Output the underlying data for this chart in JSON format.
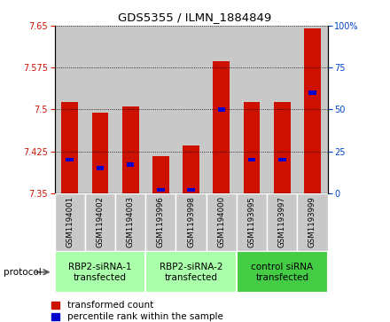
{
  "title": "GDS5355 / ILMN_1884849",
  "samples": [
    "GSM1194001",
    "GSM1194002",
    "GSM1194003",
    "GSM1193996",
    "GSM1193998",
    "GSM1194000",
    "GSM1193995",
    "GSM1193997",
    "GSM1193999"
  ],
  "transformed_counts": [
    7.513,
    7.495,
    7.506,
    7.417,
    7.436,
    7.587,
    7.513,
    7.513,
    7.645
  ],
  "percentile_ranks": [
    20,
    15,
    17,
    2,
    2,
    50,
    20,
    20,
    60
  ],
  "ylim_left": [
    7.35,
    7.65
  ],
  "ylim_right": [
    0,
    100
  ],
  "yticks_left": [
    7.35,
    7.425,
    7.5,
    7.575,
    7.65
  ],
  "yticks_right": [
    0,
    25,
    50,
    75,
    100
  ],
  "bar_bottom": 7.35,
  "groups": [
    {
      "label": "RBP2-siRNA-1\ntransfected",
      "indices": [
        0,
        1,
        2
      ],
      "color": "#aaffaa"
    },
    {
      "label": "RBP2-siRNA-2\ntransfected",
      "indices": [
        3,
        4,
        5
      ],
      "color": "#aaffaa"
    },
    {
      "label": "control siRNA\ntransfected",
      "indices": [
        6,
        7,
        8
      ],
      "color": "#44cc44"
    }
  ],
  "red_color": "#cc1100",
  "blue_color": "#0000cc",
  "sample_bg_color": "#c8c8c8",
  "protocol_label": "protocol",
  "legend_items": [
    "transformed count",
    "percentile rank within the sample"
  ]
}
